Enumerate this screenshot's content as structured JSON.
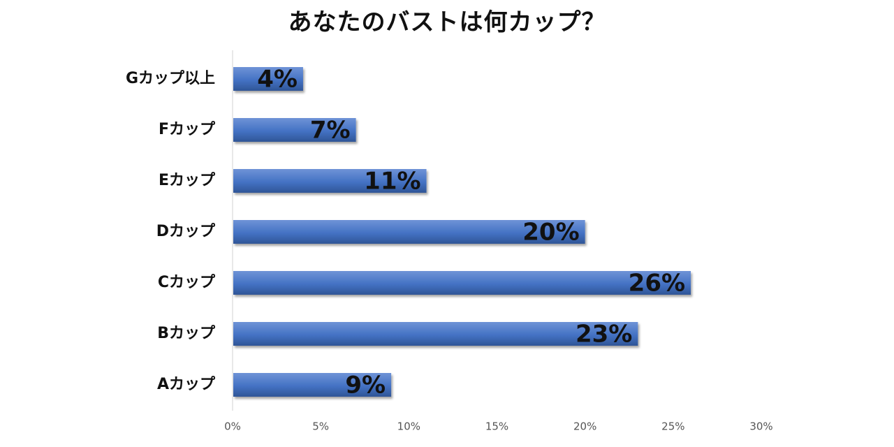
{
  "chart_data": {
    "type": "bar",
    "orientation": "horizontal",
    "title": "あなたのバストは何カップ？",
    "categories": [
      "Gカップ以上",
      "Fカップ",
      "Eカップ",
      "Dカップ",
      "Cカップ",
      "Bカップ",
      "Aカップ"
    ],
    "values": [
      4,
      7,
      11,
      20,
      26,
      23,
      9
    ],
    "value_labels": [
      "4%",
      "7%",
      "11%",
      "20%",
      "26%",
      "23%",
      "9%"
    ],
    "xlim": [
      0,
      30
    ],
    "x_ticks": [
      0,
      5,
      10,
      15,
      20,
      25,
      30
    ],
    "x_tick_labels": [
      "0%",
      "5%",
      "10%",
      "15%",
      "20%",
      "25%",
      "30%"
    ],
    "bar_color": "#4472C4",
    "grid": false,
    "legend": "none"
  }
}
